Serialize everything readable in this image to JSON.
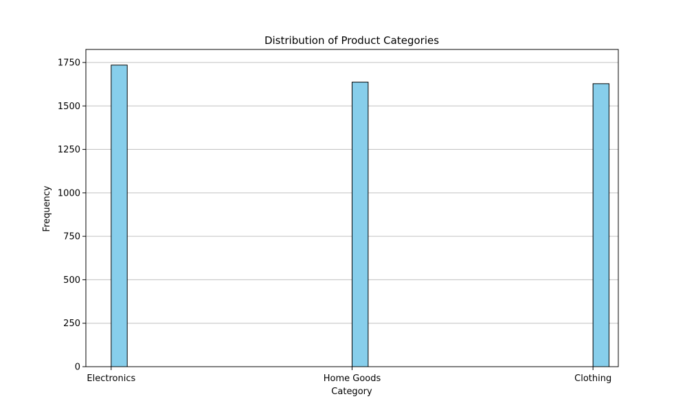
{
  "chart_data": {
    "type": "bar",
    "title": "Distribution of Product Categories",
    "xlabel": "Category",
    "ylabel": "Frequency",
    "categories": [
      "Electronics",
      "Home Goods",
      "Clothing"
    ],
    "values": [
      1735,
      1637,
      1628
    ],
    "ylim": [
      0,
      1825
    ],
    "yticks": [
      0,
      250,
      500,
      750,
      1000,
      1250,
      1500,
      1750
    ],
    "grid": "y",
    "colors": {
      "bar_fill": "#87ceeb",
      "bar_edge": "#000000",
      "grid": "#c0c0c0",
      "axis": "#000000"
    }
  }
}
